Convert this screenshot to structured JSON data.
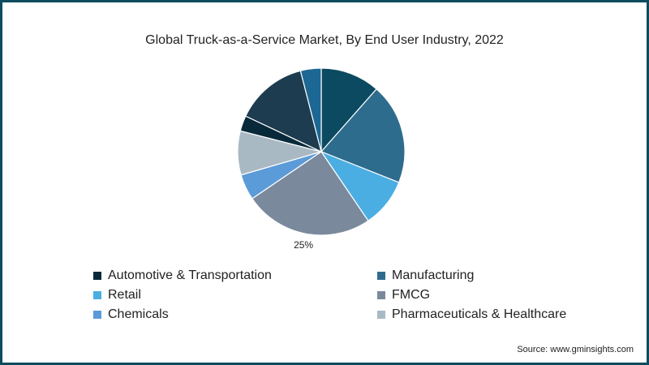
{
  "chart_data": {
    "type": "pie",
    "title": "Global Truck-as-a-Service Market, By End User Industry, 2022",
    "legend_placement": "bottom",
    "slices": [
      {
        "name": "",
        "value": 11.5,
        "color": "#0b4a60"
      },
      {
        "name": "Manufacturing",
        "value": 19.5,
        "color": "#2e6c8e"
      },
      {
        "name": "Retail",
        "value": 9.5,
        "color": "#4aaee3"
      },
      {
        "name": "FMCG",
        "value": 25,
        "color": "#7a8a9c",
        "label": "25%"
      },
      {
        "name": "Chemicals",
        "value": 5,
        "color": "#5b9bd8"
      },
      {
        "name": "Pharmaceuticals & Healthcare",
        "value": 8.5,
        "color": "#a9b9c4"
      },
      {
        "name": "",
        "value": 3,
        "color": "#08293a"
      },
      {
        "name": "",
        "value": 14,
        "color": "#1d3c50"
      },
      {
        "name": "",
        "value": 4,
        "color": "#1c6793"
      }
    ],
    "legend": [
      {
        "label": "Automotive & Transportation",
        "color": "#08293a"
      },
      {
        "label": "Manufacturing",
        "color": "#2e6c8e"
      },
      {
        "label": "Retail",
        "color": "#4aaee3"
      },
      {
        "label": "FMCG",
        "color": "#7a8a9c"
      },
      {
        "label": "Chemicals",
        "color": "#5b9bd8"
      },
      {
        "label": "Pharmaceuticals & Healthcare",
        "color": "#a9b9c4"
      }
    ]
  },
  "source": "Source: www.gminsights.com"
}
